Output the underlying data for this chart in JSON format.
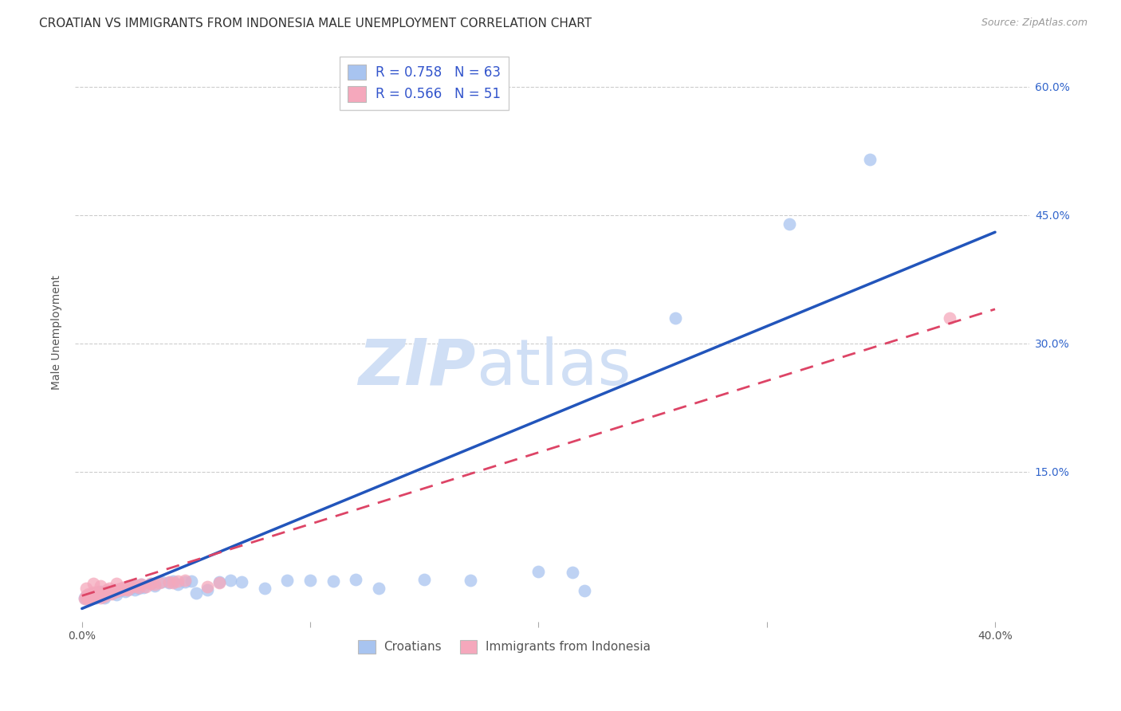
{
  "title": "CROATIAN VS IMMIGRANTS FROM INDONESIA MALE UNEMPLOYMENT CORRELATION CHART",
  "source": "Source: ZipAtlas.com",
  "ylabel": "Male Unemployment",
  "x_tick_labels": [
    "0.0%",
    "",
    "",
    "",
    "40.0%"
  ],
  "x_tick_vals": [
    0.0,
    0.1,
    0.2,
    0.3,
    0.4
  ],
  "y_tick_vals": [
    0.15,
    0.3,
    0.45,
    0.6
  ],
  "y_tick_right_labels": [
    "15.0%",
    "30.0%",
    "45.0%",
    "60.0%"
  ],
  "xlim": [
    -0.003,
    0.415
  ],
  "ylim": [
    -0.025,
    0.65
  ],
  "legend_r1_text": "R = 0.758   N = 63",
  "legend_r2_text": "R = 0.566   N = 51",
  "legend_label1": "Croatians",
  "legend_label2": "Immigrants from Indonesia",
  "color_blue": "#a8c4f0",
  "color_pink": "#f5a8bc",
  "line_color_blue": "#2255bb",
  "line_color_pink": "#dd4466",
  "watermark_color": "#d0dff5",
  "background_color": "#ffffff",
  "grid_color": "#cccccc",
  "blue_scatter": [
    [
      0.001,
      0.003
    ],
    [
      0.002,
      0.004
    ],
    [
      0.002,
      0.002
    ],
    [
      0.003,
      0.005
    ],
    [
      0.003,
      0.003
    ],
    [
      0.004,
      0.006
    ],
    [
      0.004,
      0.002
    ],
    [
      0.005,
      0.004
    ],
    [
      0.005,
      0.007
    ],
    [
      0.006,
      0.003
    ],
    [
      0.006,
      0.008
    ],
    [
      0.007,
      0.005
    ],
    [
      0.007,
      0.009
    ],
    [
      0.008,
      0.004
    ],
    [
      0.008,
      0.01
    ],
    [
      0.009,
      0.006
    ],
    [
      0.01,
      0.008
    ],
    [
      0.01,
      0.003
    ],
    [
      0.011,
      0.011
    ],
    [
      0.012,
      0.007
    ],
    [
      0.013,
      0.009
    ],
    [
      0.014,
      0.012
    ],
    [
      0.015,
      0.01
    ],
    [
      0.015,
      0.006
    ],
    [
      0.016,
      0.013
    ],
    [
      0.017,
      0.011
    ],
    [
      0.018,
      0.014
    ],
    [
      0.019,
      0.01
    ],
    [
      0.02,
      0.015
    ],
    [
      0.021,
      0.013
    ],
    [
      0.022,
      0.016
    ],
    [
      0.023,
      0.012
    ],
    [
      0.024,
      0.017
    ],
    [
      0.025,
      0.014
    ],
    [
      0.026,
      0.018
    ],
    [
      0.027,
      0.015
    ],
    [
      0.03,
      0.019
    ],
    [
      0.032,
      0.017
    ],
    [
      0.035,
      0.021
    ],
    [
      0.038,
      0.02
    ],
    [
      0.04,
      0.022
    ],
    [
      0.042,
      0.018
    ],
    [
      0.045,
      0.021
    ],
    [
      0.048,
      0.022
    ],
    [
      0.05,
      0.008
    ],
    [
      0.055,
      0.012
    ],
    [
      0.06,
      0.021
    ],
    [
      0.065,
      0.023
    ],
    [
      0.07,
      0.021
    ],
    [
      0.08,
      0.014
    ],
    [
      0.09,
      0.023
    ],
    [
      0.1,
      0.023
    ],
    [
      0.11,
      0.022
    ],
    [
      0.12,
      0.024
    ],
    [
      0.13,
      0.014
    ],
    [
      0.15,
      0.024
    ],
    [
      0.17,
      0.023
    ],
    [
      0.2,
      0.033
    ],
    [
      0.215,
      0.032
    ],
    [
      0.22,
      0.011
    ],
    [
      0.26,
      0.33
    ],
    [
      0.31,
      0.44
    ],
    [
      0.345,
      0.515
    ]
  ],
  "pink_scatter": [
    [
      0.001,
      0.002
    ],
    [
      0.002,
      0.005
    ],
    [
      0.002,
      0.003
    ],
    [
      0.003,
      0.004
    ],
    [
      0.003,
      0.007
    ],
    [
      0.004,
      0.003
    ],
    [
      0.004,
      0.006
    ],
    [
      0.005,
      0.005
    ],
    [
      0.005,
      0.009
    ],
    [
      0.006,
      0.004
    ],
    [
      0.006,
      0.008
    ],
    [
      0.007,
      0.006
    ],
    [
      0.007,
      0.01
    ],
    [
      0.008,
      0.005
    ],
    [
      0.008,
      0.003
    ],
    [
      0.009,
      0.007
    ],
    [
      0.01,
      0.009
    ],
    [
      0.01,
      0.004
    ],
    [
      0.011,
      0.012
    ],
    [
      0.012,
      0.008
    ],
    [
      0.013,
      0.007
    ],
    [
      0.014,
      0.011
    ],
    [
      0.015,
      0.01
    ],
    [
      0.015,
      0.019
    ],
    [
      0.016,
      0.013
    ],
    [
      0.017,
      0.012
    ],
    [
      0.018,
      0.015
    ],
    [
      0.019,
      0.013
    ],
    [
      0.02,
      0.016
    ],
    [
      0.022,
      0.016
    ],
    [
      0.024,
      0.017
    ],
    [
      0.025,
      0.015
    ],
    [
      0.026,
      0.018
    ],
    [
      0.028,
      0.016
    ],
    [
      0.03,
      0.019
    ],
    [
      0.032,
      0.018
    ],
    [
      0.034,
      0.02
    ],
    [
      0.038,
      0.021
    ],
    [
      0.04,
      0.02
    ],
    [
      0.042,
      0.022
    ],
    [
      0.045,
      0.023
    ],
    [
      0.055,
      0.016
    ],
    [
      0.06,
      0.02
    ],
    [
      0.005,
      0.019
    ],
    [
      0.008,
      0.017
    ],
    [
      0.012,
      0.014
    ],
    [
      0.018,
      0.013
    ],
    [
      0.02,
      0.012
    ],
    [
      0.38,
      0.33
    ],
    [
      0.003,
      0.002
    ],
    [
      0.002,
      0.014
    ]
  ]
}
